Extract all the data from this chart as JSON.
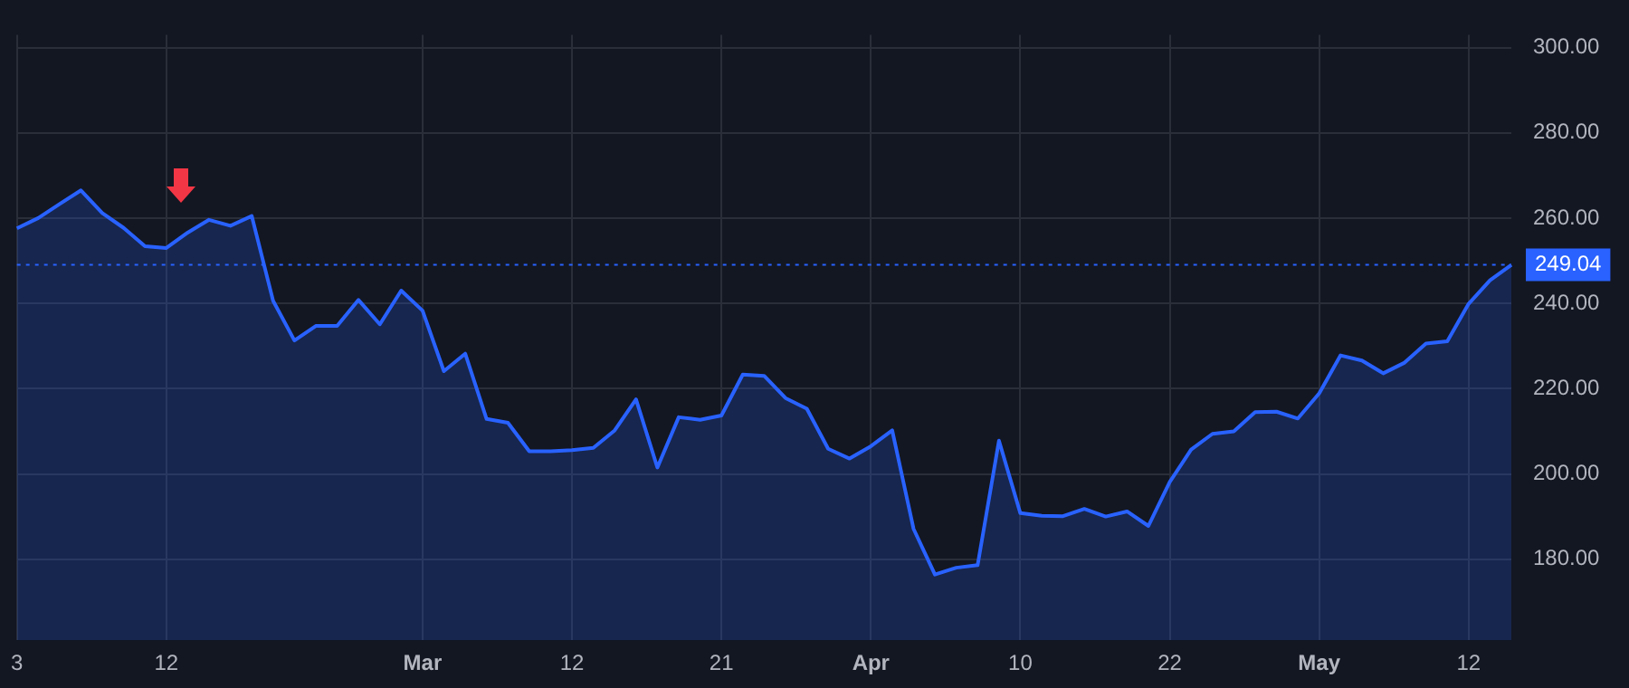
{
  "chart_data": {
    "type": "area",
    "categories": [
      "3",
      null,
      null,
      null,
      null,
      null,
      null,
      "12",
      null,
      null,
      null,
      null,
      null,
      null,
      null,
      null,
      null,
      null,
      null,
      "Mar",
      null,
      null,
      null,
      null,
      null,
      null,
      "12",
      null,
      null,
      null,
      null,
      null,
      null,
      "21",
      null,
      null,
      null,
      null,
      null,
      null,
      "Apr",
      null,
      null,
      null,
      null,
      null,
      null,
      "10",
      null,
      null,
      null,
      null,
      null,
      null,
      "22",
      null,
      null,
      null,
      null,
      null,
      null,
      "May",
      null,
      null,
      null,
      null,
      null,
      null,
      "12",
      null,
      null
    ],
    "series": [
      {
        "color": "#2962ff",
        "values": [
          257.6,
          260.0,
          263.3,
          266.5,
          261.2,
          257.7,
          253.4,
          253.0,
          256.6,
          259.6,
          258.2,
          260.5,
          240.6,
          231.3,
          234.7,
          234.7,
          240.8,
          235.1,
          243.0,
          238.3,
          224.1,
          228.2,
          212.9,
          212.0,
          205.3,
          205.3,
          205.6,
          206.1,
          210.2,
          217.5,
          201.5,
          213.3,
          212.7,
          213.7,
          223.3,
          223.0,
          217.8,
          215.3,
          205.9,
          203.6,
          206.5,
          210.2,
          187.1,
          176.4,
          178.0,
          178.6,
          207.8,
          190.8,
          190.2,
          190.1,
          191.8,
          190.0,
          191.2,
          187.8,
          198.1,
          205.7,
          209.4,
          210.0,
          214.5,
          214.6,
          213.0,
          218.9,
          227.8,
          226.6,
          223.6,
          226.1,
          230.6,
          231.1,
          239.9,
          245.4,
          249.04
        ]
      }
    ],
    "ylim": [
      161,
      303
    ],
    "yticks": [
      {
        "value": 180,
        "label": "180.00"
      },
      {
        "value": 200,
        "label": "200.00"
      },
      {
        "value": 220,
        "label": "220.00"
      },
      {
        "value": 240,
        "label": "240.00"
      },
      {
        "value": 260,
        "label": "260.00"
      },
      {
        "value": 280,
        "label": "280.00"
      },
      {
        "value": 300,
        "label": "300.00"
      }
    ],
    "grid": true,
    "legend": false,
    "ref_lines": [
      {
        "axis": "y",
        "value": 249.04,
        "label": "249.04",
        "color": "#2962ff",
        "line_style": "dotted"
      }
    ]
  }
}
